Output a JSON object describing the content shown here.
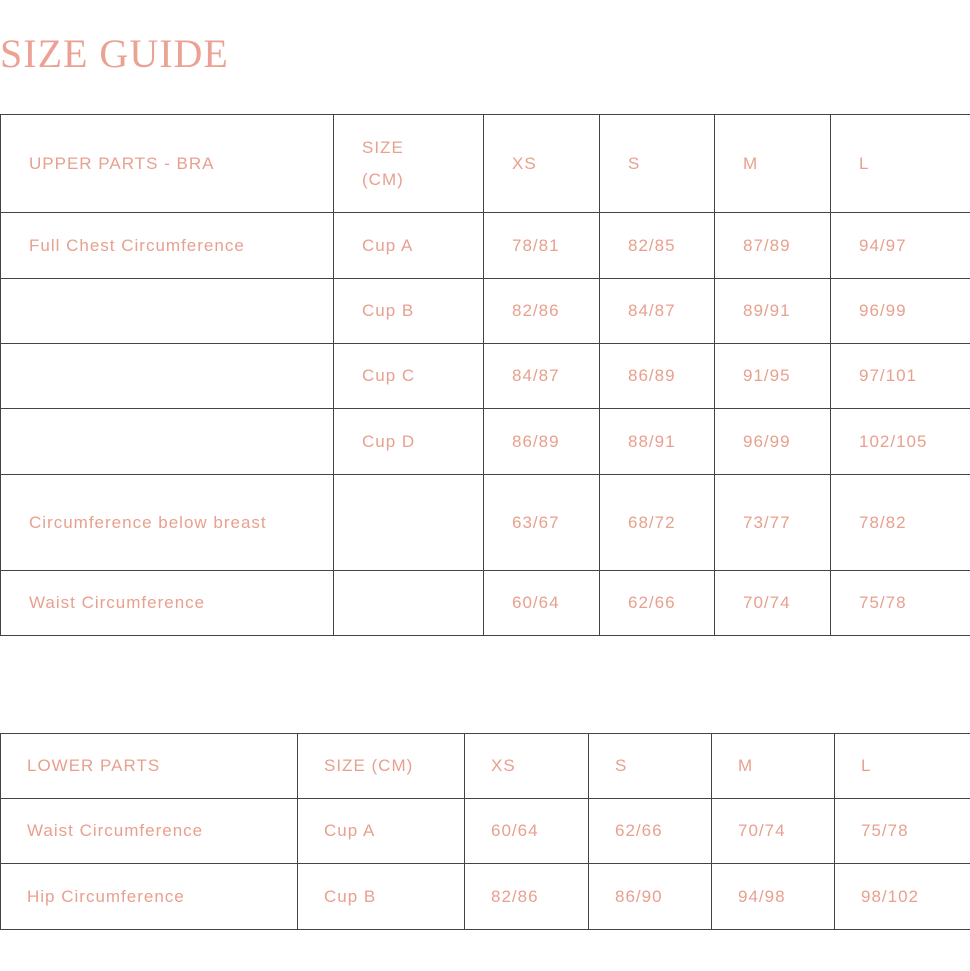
{
  "title": "SIZE GUIDE",
  "upper": {
    "header": [
      "UPPER PARTS - BRA",
      "SIZE (CM)",
      "XS",
      "S",
      "M",
      "L"
    ],
    "rows": [
      [
        "Full Chest Circumference",
        "Cup A",
        "78/81",
        "82/85",
        "87/89",
        "94/97"
      ],
      [
        "",
        "Cup B",
        "82/86",
        "84/87",
        "89/91",
        "96/99"
      ],
      [
        "",
        "Cup C",
        "84/87",
        "86/89",
        "91/95",
        "97/101"
      ],
      [
        "",
        "Cup D",
        "86/89",
        "88/91",
        "96/99",
        "102/105"
      ],
      [
        "Circumference below breast",
        "",
        "63/67",
        "68/72",
        "73/77",
        "78/82"
      ],
      [
        "Waist Circumference",
        "",
        "60/64",
        "62/66",
        "70/74",
        "75/78"
      ]
    ]
  },
  "lower": {
    "header": [
      "LOWER PARTS",
      "SIZE (CM)",
      "XS",
      "S",
      "M",
      "L"
    ],
    "rows": [
      [
        "Waist Circumference",
        "Cup A",
        "60/64",
        "62/66",
        "70/74",
        "75/78"
      ],
      [
        "Hip Circumference",
        "Cup B",
        "82/86",
        "86/90",
        "94/98",
        "98/102"
      ]
    ]
  },
  "colors": {
    "text": "#e8a08f",
    "border": "#444444"
  }
}
